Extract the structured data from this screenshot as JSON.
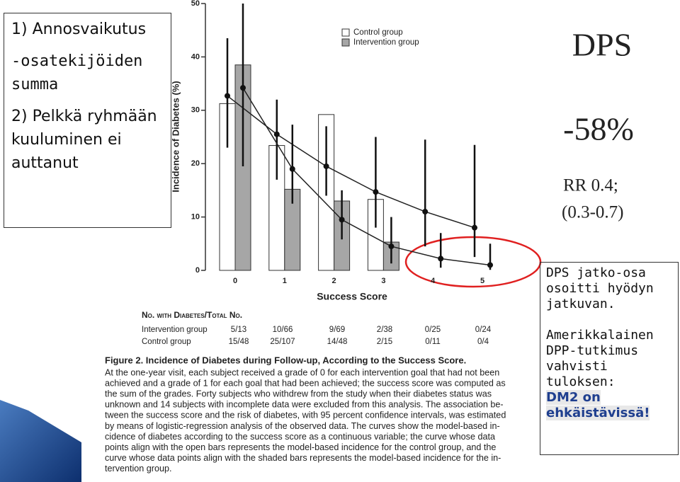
{
  "chart_data": {
    "type": "bar",
    "x_label": "Success Score",
    "y_label": "Incidence of Diabetes (%)",
    "categories": [
      "0",
      "1",
      "2",
      "3",
      "4",
      "5"
    ],
    "series": [
      {
        "name": "Control group",
        "color": "#ffffff",
        "values": [
          31.25,
          23.4,
          29.2,
          13.3,
          0,
          0
        ],
        "model_values": [
          32.7,
          25.5,
          19.5,
          14.7,
          11,
          8
        ],
        "ci_low": [
          23,
          17,
          14,
          8,
          4.5,
          2.5
        ],
        "ci_high": [
          43.5,
          32,
          27,
          25,
          24.5,
          23.5
        ]
      },
      {
        "name": "Intervention group",
        "color": "#a6a6a6",
        "values": [
          38.5,
          15.2,
          13,
          5.3,
          0,
          0
        ],
        "model_values": [
          34.2,
          19,
          9.5,
          4.5,
          2.2,
          1
        ],
        "ci_low": [
          19.5,
          12.5,
          5.8,
          1.3,
          0.5,
          0.1
        ],
        "ci_high": [
          50,
          27.3,
          15,
          10,
          7,
          5
        ]
      }
    ],
    "ylim": [
      0,
      50
    ],
    "yticks": [
      0,
      10,
      20,
      30,
      40,
      50
    ],
    "legend": "top-right"
  },
  "table": {
    "header": "No. with Diabetes/Total No.",
    "rows": [
      [
        "Intervention group",
        "5/13",
        "10/66",
        "9/69",
        "2/38",
        "0/25",
        "0/24"
      ],
      [
        "Control group",
        "15/48",
        "25/107",
        "14/48",
        "2/15",
        "0/11",
        "0/4"
      ]
    ]
  },
  "caption": {
    "heading": "Figure 2. Incidence of Diabetes during Follow-up, According to the Success Score.",
    "lines": [
      "At the one-year visit, each subject received a grade of 0 for each intervention goal that had not been",
      "achieved and a grade of 1 for each goal that had been achieved; the success score was computed as",
      "the sum of the grades. Forty subjects who withdrew from the study when their diabetes status was",
      "unknown and 14 subjects with incomplete data were excluded from this analysis. The association be-",
      "tween the success score and the risk of diabetes, with 95 percent confidence intervals, was estimated",
      "by means of logistic-regression analysis of the observed data. The curves show the model-based in-",
      "cidence of diabetes according to the success score as a continuous variable; the curve whose data",
      "points align with the open bars represents the model-based incidence for the control group, and the",
      "curve whose data points align with the shaded bars represents the model-based incidence for the in-",
      "tervention group."
    ]
  },
  "left_box": {
    "items": [
      "1) Annosvaikutus",
      "-osatekijöiden summa",
      "2) Pelkkä ryhmään kuuluminen ei auttanut"
    ]
  },
  "right": {
    "title": "DPS",
    "reduction": "-58%",
    "rr": "RR 0.4;",
    "ci": "(0.3-0.7)"
  },
  "right_box": {
    "p1": "DPS jatko-osa osoitti hyödyn jatkuvan.",
    "p2": "Amerikkalainen DPP-tutkimus vahvisti tuloksen:",
    "highlight": "DM2 on ehkäistävissä!"
  }
}
